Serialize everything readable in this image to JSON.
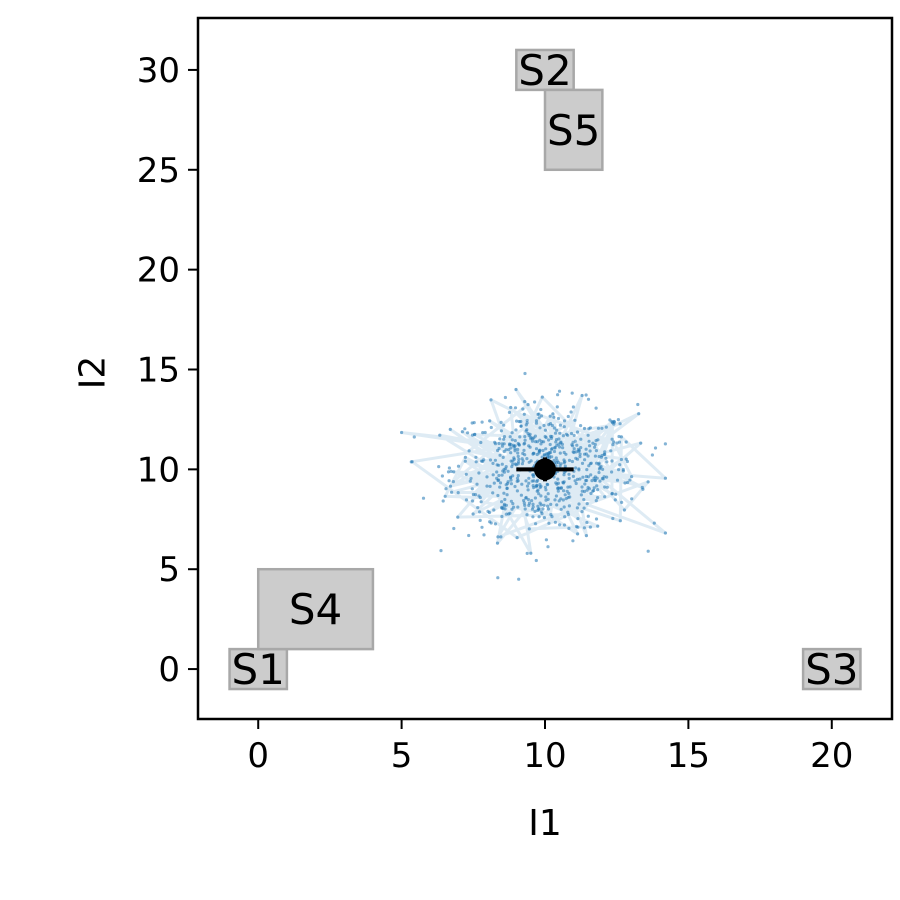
{
  "chart_data": {
    "type": "scatter",
    "title": "",
    "xlabel": "I1",
    "ylabel": "I2",
    "xlim": [
      -2.1,
      22.1
    ],
    "ylim": [
      -2.5,
      32.6
    ],
    "xticks": [
      0,
      5,
      10,
      15,
      20
    ],
    "yticks": [
      0,
      5,
      10,
      15,
      20,
      25,
      30
    ],
    "xtick_labels": [
      "0",
      "5",
      "10",
      "15",
      "20"
    ],
    "ytick_labels": [
      "0",
      "5",
      "10",
      "15",
      "20",
      "25",
      "30"
    ],
    "grid": false,
    "regions": [
      {
        "label": "S1",
        "x": [
          -1,
          1
        ],
        "y": [
          -1,
          1
        ]
      },
      {
        "label": "S2",
        "x": [
          9,
          11
        ],
        "y": [
          29,
          31
        ]
      },
      {
        "label": "S3",
        "x": [
          19,
          21
        ],
        "y": [
          -1,
          1
        ]
      },
      {
        "label": "S4",
        "x": [
          0,
          4
        ],
        "y": [
          1,
          5
        ]
      },
      {
        "label": "S5",
        "x": [
          10,
          12
        ],
        "y": [
          25,
          29
        ]
      }
    ],
    "region_color": "#cccccc",
    "series": [
      {
        "type": "line",
        "color": "#1f77b4",
        "opacity": 0.15
      },
      {
        "type": "scatter",
        "color": "#1f77b4"
      }
    ],
    "cloud": {
      "center": [
        10,
        10
      ],
      "std": [
        1.6,
        1.6
      ],
      "n": 700,
      "x_range": [
        5,
        14.2
      ],
      "y_range": [
        4.5,
        14.8
      ]
    },
    "mean_point": {
      "x": 10,
      "y": 10,
      "xerr": 1.0,
      "yerr": 0.6,
      "color": "#000000"
    }
  }
}
